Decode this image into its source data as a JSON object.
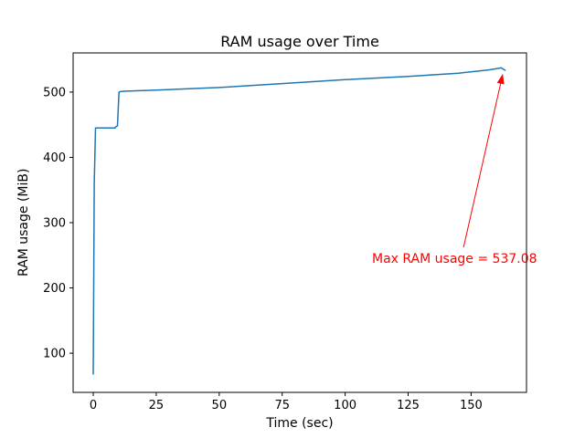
{
  "colors": {
    "line": "#1f77b4",
    "annotation": "#ff0000",
    "axis": "#000000",
    "background": "#ffffff"
  },
  "chart_data": {
    "type": "line",
    "title": "RAM usage over Time",
    "xlabel": "Time (sec)",
    "ylabel": "RAM usage (MiB)",
    "xlim": [
      -8,
      172
    ],
    "ylim": [
      40,
      560
    ],
    "xticks": [
      0,
      25,
      50,
      75,
      100,
      125,
      150
    ],
    "yticks": [
      100,
      200,
      300,
      400,
      500
    ],
    "grid": false,
    "legend": "none",
    "series": [
      {
        "name": "RAM usage",
        "x": [
          0,
          0.4,
          0.9,
          8.6,
          9.0,
          9.6,
          10.2,
          11,
          13,
          25,
          50,
          75,
          100,
          125,
          145,
          157,
          162,
          163.5
        ],
        "y": [
          68,
          360,
          445,
          445,
          447,
          448,
          500,
          501,
          501.5,
          503,
          507,
          513,
          519,
          524,
          529,
          534,
          537.08,
          533.5
        ]
      }
    ],
    "max_value": 537.08,
    "annotation": {
      "text": "Max RAM usage = 537.08",
      "color": "#ff0000",
      "text_xy": [
        111,
        236
      ],
      "arrow": {
        "from": [
          147,
          262
        ],
        "to": [
          162.6,
          528
        ]
      }
    }
  }
}
